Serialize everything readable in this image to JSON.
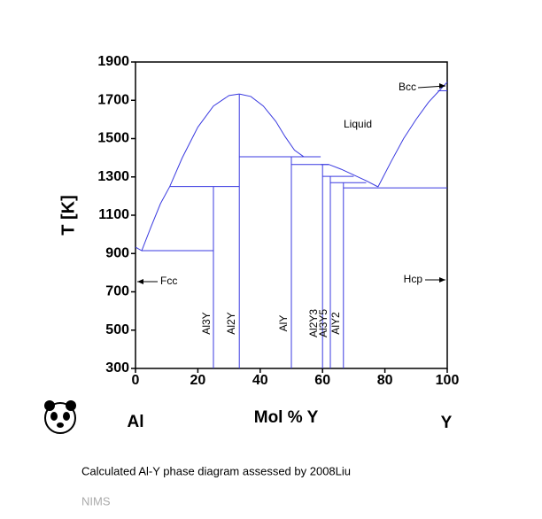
{
  "chart_data": {
    "type": "line",
    "xlabel": "Mol % Y",
    "ylabel": "T [K]",
    "left_label": "Al",
    "right_label": "Y",
    "xlim": [
      0,
      100
    ],
    "ylim": [
      300,
      1900
    ],
    "xticks": [
      0,
      20,
      40,
      60,
      80,
      100
    ],
    "yticks": [
      300,
      500,
      700,
      900,
      1100,
      1300,
      1500,
      1700,
      1900
    ],
    "annotations": [
      "Liquid",
      "Bcc",
      "Fcc",
      "Hcp"
    ],
    "phases": [
      "Al3Y",
      "Al2Y",
      "AlY",
      "Al2Y3",
      "Al3Y5",
      "AlY2"
    ],
    "series": [
      {
        "color": "#3a3ae0",
        "x": [
          0,
          2,
          5,
          8,
          11,
          15,
          20,
          25,
          30,
          33.3
        ],
        "values": [
          933,
          915,
          1040,
          1160,
          1250,
          1400,
          1560,
          1670,
          1725,
          1733
        ]
      },
      {
        "color": "#3a3ae0",
        "x": [
          33.3,
          37,
          41,
          45,
          48,
          51,
          54
        ],
        "values": [
          1733,
          1720,
          1670,
          1590,
          1510,
          1440,
          1405
        ]
      },
      {
        "color": "#3a3ae0",
        "x": [
          59.4,
          62,
          66,
          70,
          74,
          77.8
        ],
        "values": [
          1365,
          1365,
          1340,
          1310,
          1280,
          1248
        ]
      },
      {
        "color": "#3a3ae0",
        "x": [
          77.8,
          82,
          86,
          90,
          94,
          98,
          100
        ],
        "values": [
          1248,
          1380,
          1500,
          1600,
          1690,
          1760,
          1795
        ]
      },
      {
        "color": "#3a3ae0",
        "x": [
          2,
          25
        ],
        "values": [
          915,
          915
        ]
      },
      {
        "color": "#3a3ae0",
        "x": [
          11,
          33.3
        ],
        "values": [
          1250,
          1250
        ]
      },
      {
        "color": "#3a3ae0",
        "x": [
          33.3,
          59.4
        ],
        "values": [
          1405,
          1405
        ]
      },
      {
        "color": "#3a3ae0",
        "x": [
          50,
          62
        ],
        "values": [
          1365,
          1365
        ]
      },
      {
        "color": "#3a3ae0",
        "x": [
          60,
          70
        ],
        "values": [
          1303,
          1303
        ]
      },
      {
        "color": "#3a3ae0",
        "x": [
          62.5,
          74
        ],
        "values": [
          1270,
          1270
        ]
      },
      {
        "color": "#3a3ae0",
        "x": [
          66.7,
          100
        ],
        "values": [
          1243,
          1243
        ]
      },
      {
        "color": "#3a3ae0",
        "x": [
          97,
          100
        ],
        "values": [
          1750,
          1750
        ]
      },
      {
        "color": "#3a3ae0",
        "x": [
          25,
          25
        ],
        "values": [
          300,
          1250
        ]
      },
      {
        "color": "#3a3ae0",
        "x": [
          33.3,
          33.3
        ],
        "values": [
          300,
          1733
        ]
      },
      {
        "color": "#3a3ae0",
        "x": [
          50,
          50
        ],
        "values": [
          300,
          1405
        ]
      },
      {
        "color": "#3a3ae0",
        "x": [
          60,
          60
        ],
        "values": [
          300,
          1365
        ]
      },
      {
        "color": "#3a3ae0",
        "x": [
          62.5,
          62.5
        ],
        "values": [
          300,
          1303
        ]
      },
      {
        "color": "#3a3ae0",
        "x": [
          66.7,
          66.7
        ],
        "values": [
          300,
          1270
        ]
      }
    ]
  },
  "caption": "Calculated Al-Y phase diagram assessed by 2008Liu",
  "source": "NIMS"
}
